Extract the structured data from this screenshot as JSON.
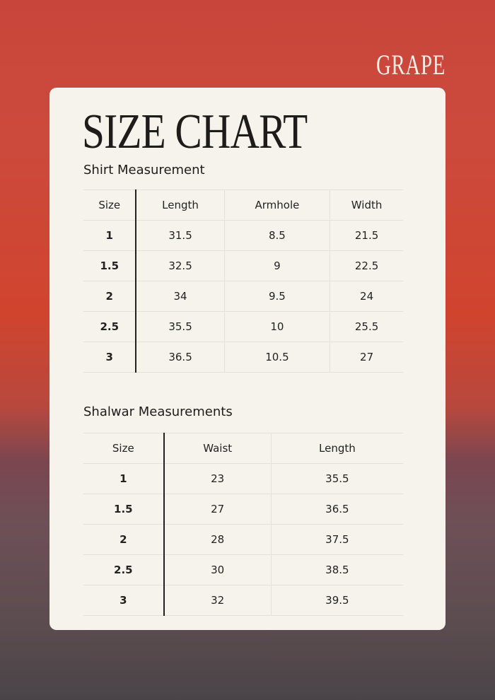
{
  "brand": "GRAPE",
  "title": "SIZE CHART",
  "shirt": {
    "heading": "Shirt Measurement",
    "columns": [
      "Size",
      "Length",
      "Armhole",
      "Width"
    ],
    "rows": [
      [
        "1",
        "31.5",
        "8.5",
        "21.5"
      ],
      [
        "1.5",
        "32.5",
        "9",
        "22.5"
      ],
      [
        "2",
        "34",
        "9.5",
        "24"
      ],
      [
        "2.5",
        "35.5",
        "10",
        "25.5"
      ],
      [
        "3",
        "36.5",
        "10.5",
        "27"
      ]
    ]
  },
  "shalwar": {
    "heading": "Shalwar Measurements",
    "columns": [
      "Size",
      "Waist",
      "Length"
    ],
    "rows": [
      [
        "1",
        "23",
        "35.5"
      ],
      [
        "1.5",
        "27",
        "36.5"
      ],
      [
        "2",
        "28",
        "37.5"
      ],
      [
        "2.5",
        "30",
        "38.5"
      ],
      [
        "3",
        "32",
        "39.5"
      ]
    ]
  }
}
